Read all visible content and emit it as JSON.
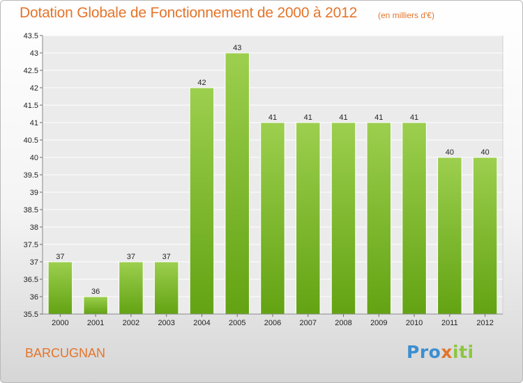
{
  "chart_data": {
    "type": "bar",
    "title": "Dotation Globale de Fonctionnement de 2000 à 2012",
    "subtitle": "(en milliers d'€)",
    "categories": [
      "2000",
      "2001",
      "2002",
      "2003",
      "2004",
      "2005",
      "2006",
      "2007",
      "2008",
      "2009",
      "2010",
      "2011",
      "2012"
    ],
    "values": [
      37,
      36,
      37,
      37,
      42,
      43,
      41,
      41,
      41,
      41,
      41,
      40,
      40
    ],
    "data_labels": [
      "37",
      "36",
      "37",
      "37",
      "42",
      "43",
      "41",
      "41",
      "41",
      "41",
      "41",
      "40",
      "40"
    ],
    "xlabel": "",
    "ylabel": "",
    "ylim": [
      35.5,
      43.5
    ],
    "yticks": [
      35.5,
      36,
      36.5,
      37,
      37.5,
      38,
      38.5,
      39,
      39.5,
      40,
      40.5,
      41,
      41.5,
      42,
      42.5,
      43,
      43.5
    ],
    "grid": true,
    "bar_color": "#8cc63f"
  },
  "footer": {
    "commune": "BARCUGNAN"
  },
  "logo": {
    "letters": [
      {
        "ch": "P",
        "color": "#3d8ed0"
      },
      {
        "ch": "r",
        "color": "#3d8ed0"
      },
      {
        "ch": "o",
        "color": "#3d8ed0"
      },
      {
        "ch": "x",
        "color": "#e4742a"
      },
      {
        "ch": "i",
        "color": "#8cc63f"
      },
      {
        "ch": "t",
        "color": "#8cc63f"
      },
      {
        "ch": "i",
        "color": "#8cc63f"
      }
    ]
  }
}
